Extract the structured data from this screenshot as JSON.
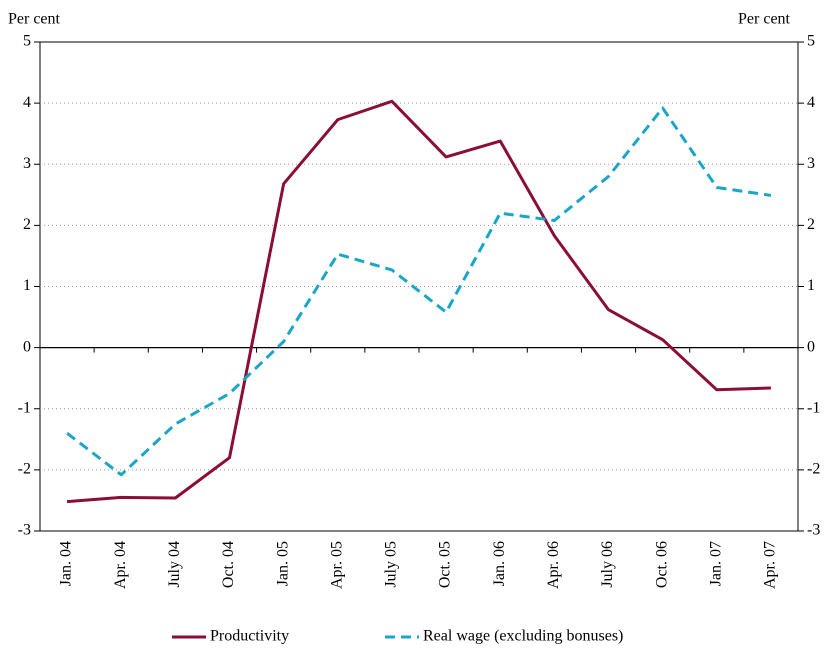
{
  "chart_data": {
    "type": "line",
    "y_label": "Per cent",
    "y2_label": "Per cent",
    "categories": [
      "Jan. 04",
      "Apr. 04",
      "July 04",
      "Oct. 04",
      "Jan. 05",
      "Apr. 05",
      "July 05",
      "Oct. 05",
      "Jan. 06",
      "Apr. 06",
      "July 06",
      "Oct. 06",
      "Jan. 07",
      "Apr. 07"
    ],
    "series": [
      {
        "name": "Productivity",
        "color": "#8b0d3a",
        "dashed": false,
        "values": [
          -2.52,
          -2.45,
          -2.46,
          -1.8,
          2.68,
          3.73,
          4.03,
          3.12,
          3.38,
          1.83,
          0.62,
          0.13,
          -0.69,
          -0.66
        ]
      },
      {
        "name": "Real wage (excluding bonuses)",
        "color": "#1aa6c8",
        "dashed": true,
        "values": [
          -1.4,
          -2.08,
          -1.25,
          -0.75,
          0.1,
          1.53,
          1.27,
          0.58,
          2.2,
          2.08,
          2.8,
          3.92,
          2.62,
          2.49
        ]
      }
    ],
    "ylim": [
      -3,
      5
    ],
    "yticks": [
      -3,
      -2,
      -1,
      0,
      1,
      2,
      3,
      4,
      5
    ],
    "y2lim": [
      -3,
      5
    ],
    "y2ticks": [
      -3,
      -2,
      -1,
      0,
      1,
      2,
      3,
      4,
      5
    ],
    "grid": true
  }
}
